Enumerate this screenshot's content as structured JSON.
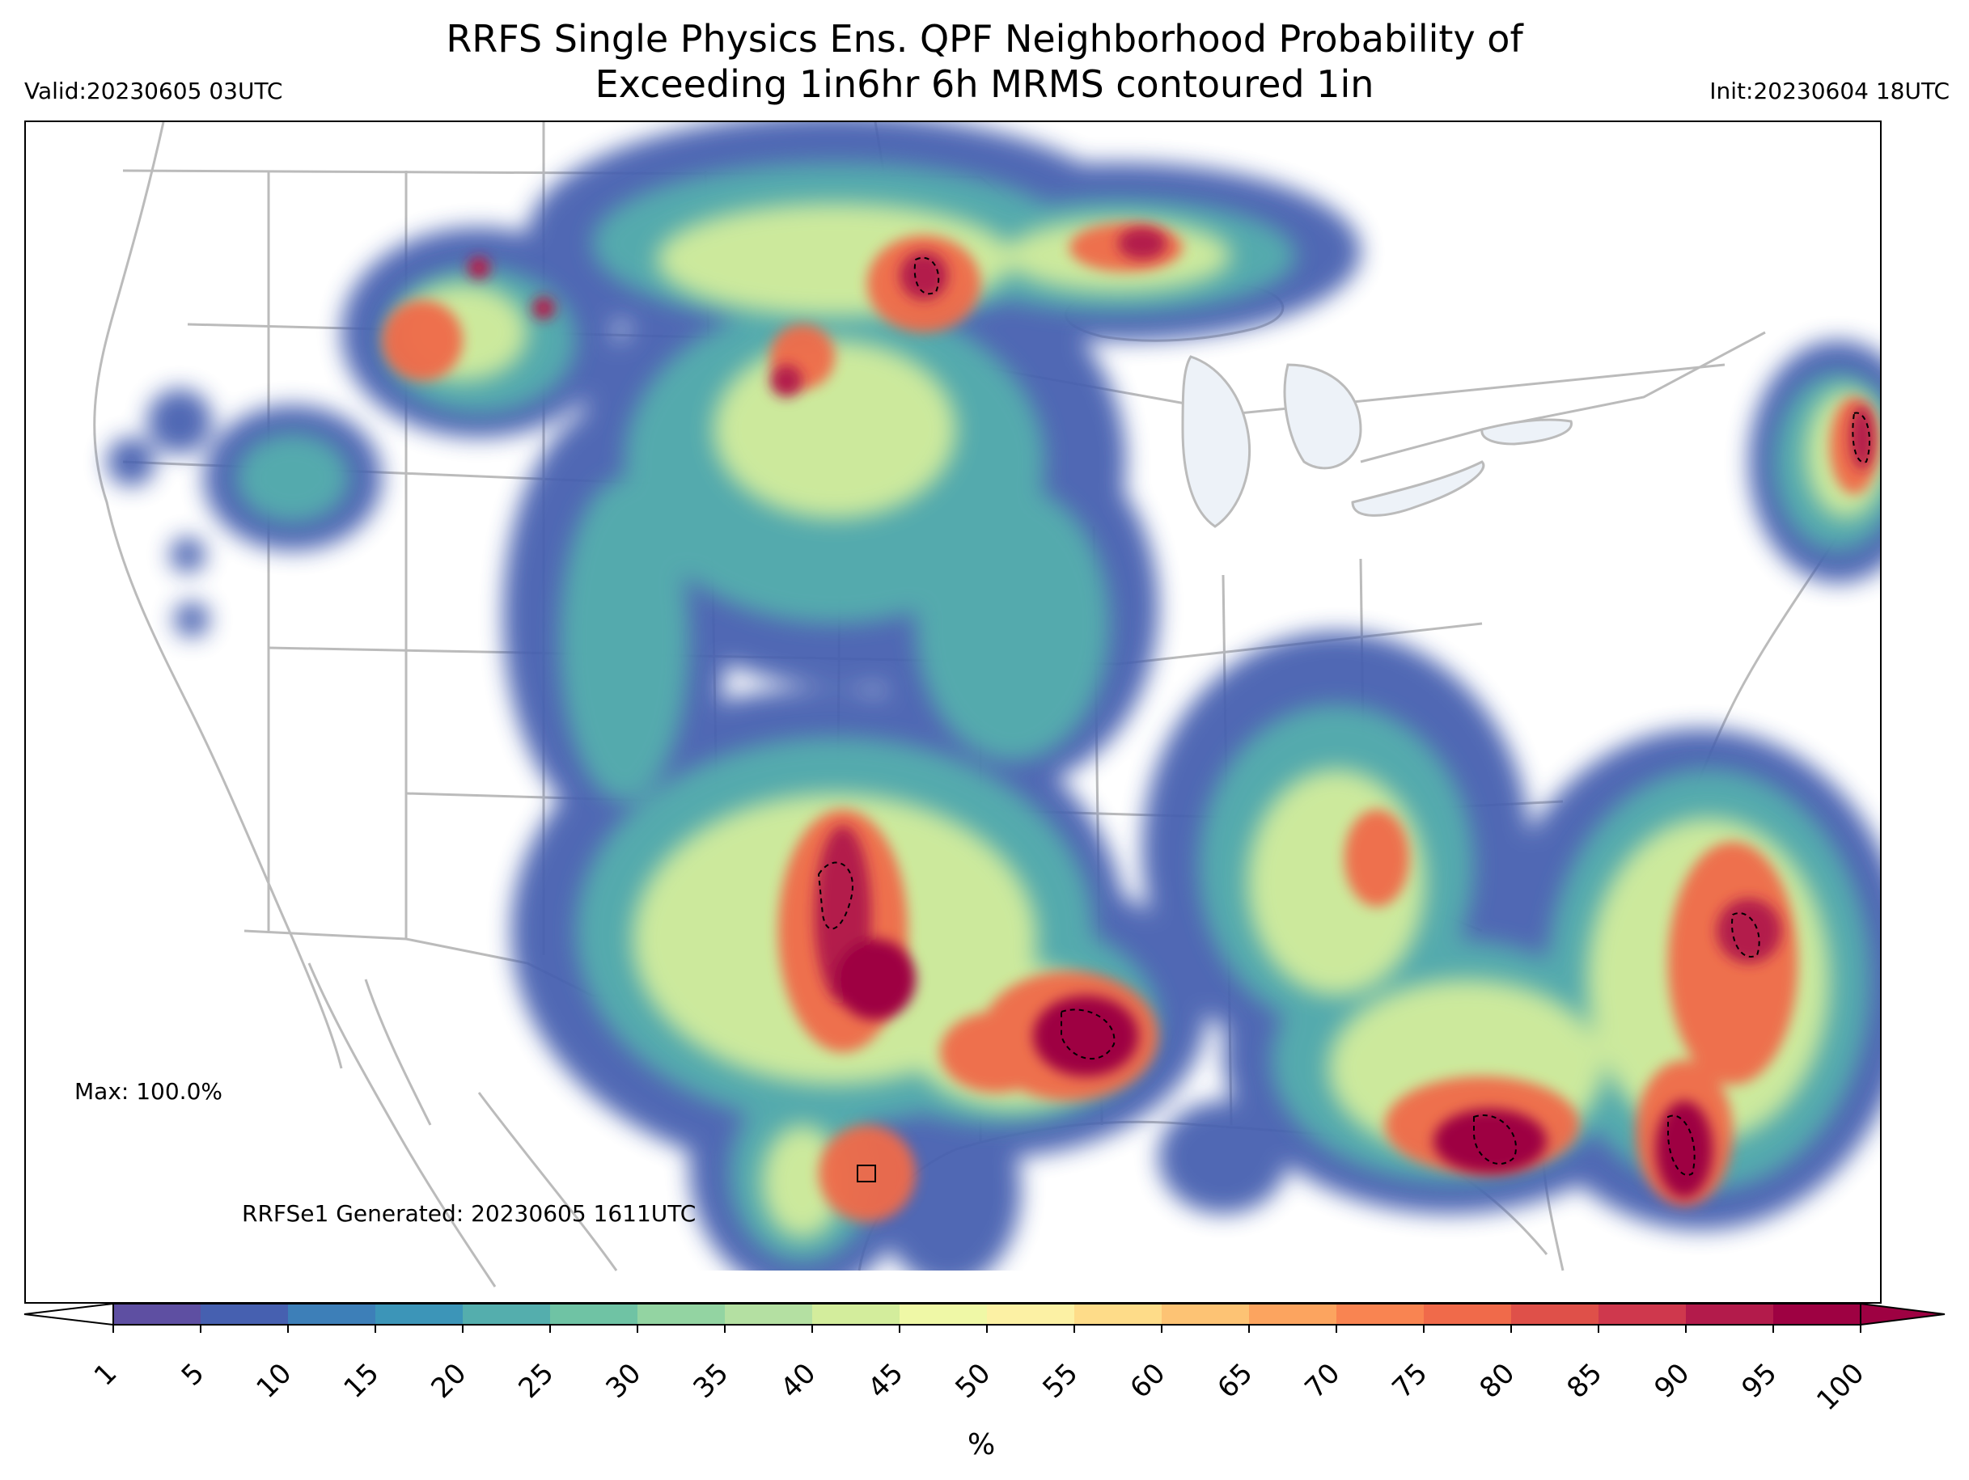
{
  "title_line1": "RRFS Single Physics Ens. QPF Neighborhood Probability of",
  "title_line2": "Exceeding 1in6hr 6h MRMS contoured 1in",
  "valid_label": "Valid:20230605 03UTC",
  "init_label": "Init:20230604 18UTC",
  "max_label": "Max: 100.0%",
  "generated_label": "RRFSe1 Generated: 20230605 1611UTC",
  "colorbar": {
    "units": "%",
    "ticks": [
      "1",
      "5",
      "10",
      "15",
      "20",
      "25",
      "30",
      "35",
      "40",
      "45",
      "50",
      "55",
      "60",
      "65",
      "70",
      "75",
      "80",
      "85",
      "90",
      "95",
      "100"
    ],
    "colors": [
      "#5e4fa2",
      "#4660b0",
      "#3d7fb8",
      "#3c95b8",
      "#54aead",
      "#6fc3a4",
      "#93d4a2",
      "#b4e0a2",
      "#d3ed9c",
      "#eff8a6",
      "#fcf1a4",
      "#fedc89",
      "#fdc374",
      "#fca45f",
      "#f98451",
      "#f06a4a",
      "#df5049",
      "#cf384d",
      "#b31b4b",
      "#9e0142"
    ]
  },
  "map": {
    "land_color": "#ffffff",
    "lake_color": "#edf2f8",
    "boundary_color": "#bbbbbb"
  }
}
